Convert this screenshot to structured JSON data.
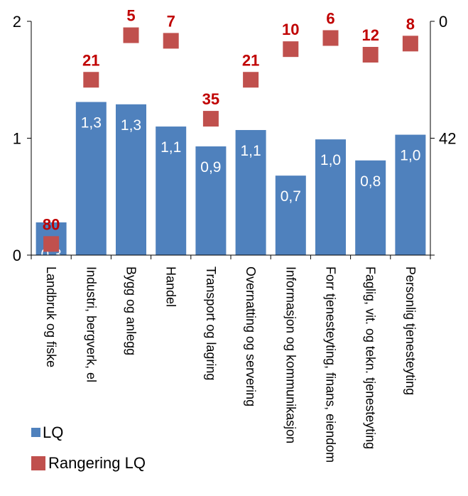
{
  "chart_data": {
    "type": "bar",
    "categories": [
      "Landbruk og fiske",
      "Industri, bergverk, el",
      "Bygg og anlegg",
      "Handel",
      "Transport og lagring",
      "Overnatting og servering",
      "Informasjon og kommunikasjon",
      "Forr tjenesteyting, finans, eiendom",
      "Faglig, vit. og tekn. tjenesteyting",
      "Personlig tjenesteyting"
    ],
    "series": [
      {
        "name": "LQ",
        "type": "bar",
        "axis": "left",
        "color": "#4f81bd",
        "values": [
          0.28,
          1.31,
          1.29,
          1.1,
          0.93,
          1.07,
          0.68,
          0.99,
          0.81,
          1.03
        ],
        "labels": [
          "0,3",
          "1,3",
          "1,3",
          "1,1",
          "0,9",
          "1,1",
          "0,7",
          "1,0",
          "0,8",
          "1,0"
        ]
      },
      {
        "name": "Rangering LQ",
        "type": "scatter",
        "axis": "right",
        "color": "#c0504d",
        "values": [
          80,
          21,
          5,
          7,
          35,
          21,
          10,
          6,
          12,
          8
        ],
        "labels": [
          "80",
          "21",
          "5",
          "7",
          "35",
          "21",
          "10",
          "6",
          "12",
          "8"
        ]
      }
    ],
    "left_axis": {
      "ylim": [
        0,
        2
      ],
      "ticks": [
        "0",
        "1",
        "2"
      ]
    },
    "right_axis": {
      "ylim": [
        0,
        84
      ],
      "reversed": true,
      "ticks": [
        "0",
        "42"
      ]
    },
    "legend": {
      "position": "bottom-left",
      "entries": [
        "LQ",
        "Rangering LQ"
      ]
    },
    "grid": false
  }
}
